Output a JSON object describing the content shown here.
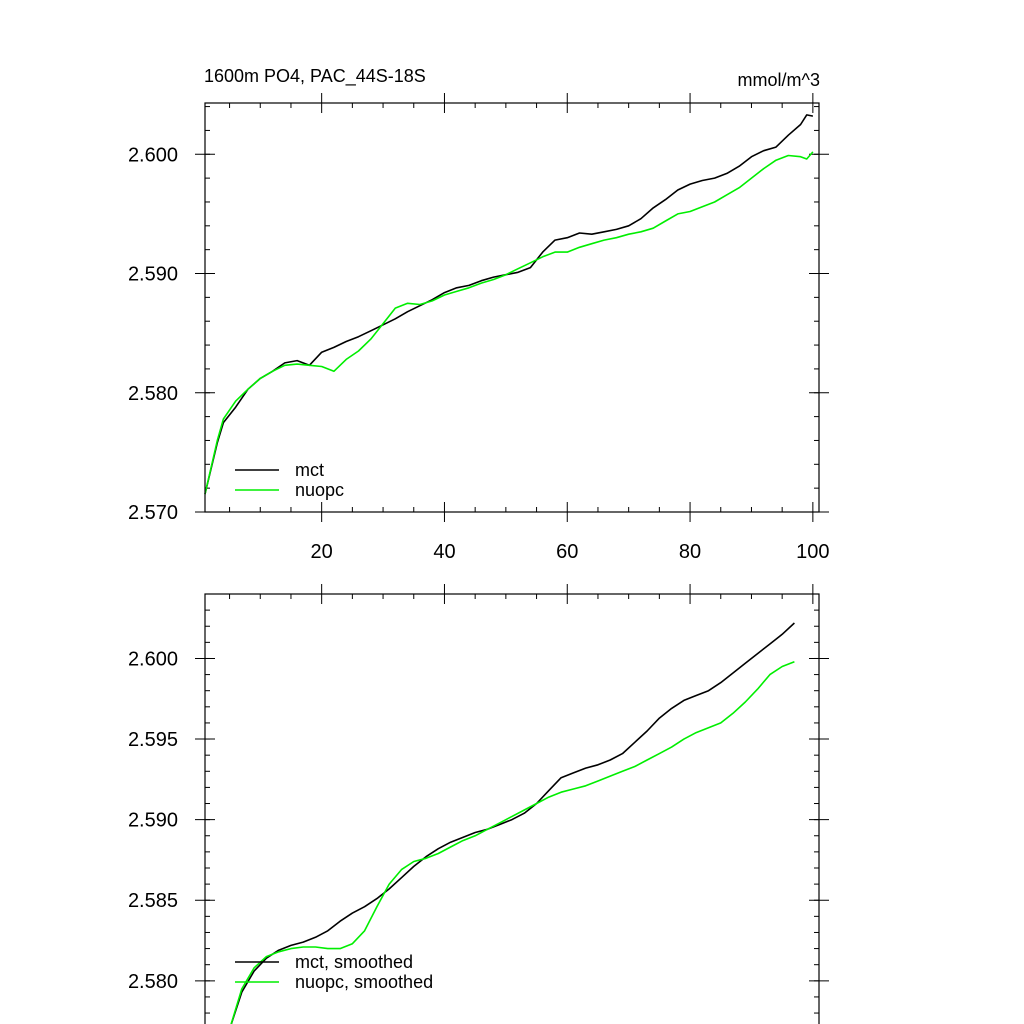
{
  "colors": {
    "mct": "#000000",
    "nuopc": "#00ee00"
  },
  "chart_data": [
    {
      "type": "line",
      "title": "1600m PO4, PAC_44S-18S",
      "units": "mmol/m^3",
      "xlim": [
        1,
        101
      ],
      "ylim": [
        2.57,
        2.6043
      ],
      "x_ticks": [
        20,
        40,
        60,
        80,
        100
      ],
      "y_ticks": [
        2.57,
        2.58,
        2.59,
        2.6
      ],
      "x_tick_labels": [
        "20",
        "40",
        "60",
        "80",
        "100"
      ],
      "y_tick_labels": [
        "2.570",
        "2.580",
        "2.590",
        "2.600"
      ],
      "legend_position": "bottom-left",
      "series": [
        {
          "name": "mct",
          "color": "#000000",
          "x": [
            1,
            3,
            4,
            6,
            8,
            10,
            12,
            14,
            16,
            18,
            20,
            22,
            24,
            26,
            28,
            30,
            32,
            34,
            36,
            38,
            40,
            42,
            44,
            46,
            48,
            50,
            52,
            54,
            56,
            58,
            60,
            62,
            64,
            66,
            68,
            70,
            72,
            74,
            76,
            78,
            80,
            82,
            84,
            86,
            88,
            90,
            92,
            94,
            96,
            98,
            99,
            100
          ],
          "y": [
            2.5715,
            2.5758,
            2.5775,
            2.5788,
            2.5803,
            2.5812,
            2.5818,
            2.5825,
            2.5827,
            2.5823,
            2.5834,
            2.5838,
            2.5843,
            2.5847,
            2.5852,
            2.5857,
            2.5862,
            2.5868,
            2.5873,
            2.5878,
            2.5884,
            2.5888,
            2.589,
            2.5894,
            2.5897,
            2.5899,
            2.5901,
            2.5905,
            2.5918,
            2.5928,
            2.593,
            2.5934,
            2.5933,
            2.5935,
            2.5937,
            2.594,
            2.5946,
            2.5955,
            2.5962,
            2.597,
            2.5975,
            2.5978,
            2.598,
            2.5984,
            2.599,
            2.5998,
            2.6003,
            2.6006,
            2.6016,
            2.6025,
            2.6033,
            2.6032
          ]
        },
        {
          "name": "nuopc",
          "color": "#00ee00",
          "x": [
            1,
            3,
            4,
            6,
            8,
            10,
            12,
            14,
            16,
            18,
            20,
            22,
            24,
            26,
            28,
            30,
            32,
            34,
            36,
            38,
            40,
            42,
            44,
            46,
            48,
            50,
            52,
            54,
            56,
            58,
            60,
            62,
            64,
            66,
            68,
            70,
            72,
            74,
            76,
            78,
            80,
            82,
            84,
            86,
            88,
            90,
            92,
            94,
            96,
            98,
            99,
            100
          ],
          "y": [
            2.5715,
            2.576,
            2.5778,
            2.5793,
            2.5803,
            2.5812,
            2.5818,
            2.5823,
            2.5824,
            2.5823,
            2.5822,
            2.5818,
            2.5828,
            2.5835,
            2.5845,
            2.5858,
            2.5871,
            2.5875,
            2.5874,
            2.5877,
            2.5882,
            2.5885,
            2.5888,
            2.5892,
            2.5895,
            2.5899,
            2.5904,
            2.5909,
            2.5914,
            2.5918,
            2.5918,
            2.5922,
            2.5925,
            2.5928,
            2.593,
            2.5933,
            2.5935,
            2.5938,
            2.5944,
            2.595,
            2.5952,
            2.5956,
            2.596,
            2.5966,
            2.5972,
            2.598,
            2.5988,
            2.5995,
            2.5999,
            2.5998,
            2.5996,
            2.6002
          ]
        }
      ]
    },
    {
      "type": "line",
      "xlim": [
        1,
        101
      ],
      "ylim": [
        2.5767,
        2.604
      ],
      "x_ticks": [
        20,
        40,
        60,
        80,
        100
      ],
      "y_ticks": [
        2.58,
        2.585,
        2.59,
        2.595,
        2.6
      ],
      "y_tick_labels": [
        "2.580",
        "2.585",
        "2.590",
        "2.595",
        "2.600"
      ],
      "legend_position": "bottom-left",
      "series": [
        {
          "name": "mct, smoothed",
          "color": "#000000",
          "x": [
            5,
            7,
            9,
            11,
            13,
            15,
            17,
            19,
            21,
            23,
            25,
            27,
            29,
            31,
            33,
            35,
            37,
            39,
            41,
            43,
            45,
            47,
            49,
            51,
            53,
            55,
            57,
            59,
            61,
            63,
            65,
            67,
            69,
            71,
            73,
            75,
            77,
            79,
            81,
            83,
            85,
            87,
            89,
            91,
            93,
            95,
            97
          ],
          "y": [
            2.577,
            2.5793,
            2.5806,
            2.5814,
            2.5819,
            2.5822,
            2.5824,
            2.5827,
            2.5831,
            2.5837,
            2.5842,
            2.5846,
            2.5851,
            2.5857,
            2.5864,
            2.5871,
            2.5877,
            2.5882,
            2.5886,
            2.5889,
            2.5892,
            2.5894,
            2.5897,
            2.59,
            2.5904,
            2.591,
            2.5918,
            2.5926,
            2.5929,
            2.5932,
            2.5934,
            2.5937,
            2.5941,
            2.5948,
            2.5955,
            2.5963,
            2.5969,
            2.5974,
            2.5977,
            2.598,
            2.5985,
            2.5991,
            2.5997,
            2.6003,
            2.6009,
            2.6015,
            2.6022
          ]
        },
        {
          "name": "nuopc, smoothed",
          "color": "#00ee00",
          "x": [
            5,
            7,
            9,
            11,
            13,
            15,
            17,
            19,
            21,
            23,
            25,
            27,
            29,
            31,
            33,
            35,
            37,
            39,
            41,
            43,
            45,
            47,
            49,
            51,
            53,
            55,
            57,
            59,
            61,
            63,
            65,
            67,
            69,
            71,
            73,
            75,
            77,
            79,
            81,
            83,
            85,
            87,
            89,
            91,
            93,
            95,
            97
          ],
          "y": [
            2.577,
            2.5795,
            2.5808,
            2.5815,
            2.5818,
            2.582,
            2.5821,
            2.5821,
            2.582,
            2.582,
            2.5823,
            2.5831,
            2.5846,
            2.586,
            2.5869,
            2.5874,
            2.5876,
            2.5879,
            2.5883,
            2.5887,
            2.589,
            2.5894,
            2.5898,
            2.5902,
            2.5906,
            2.591,
            2.5914,
            2.5917,
            2.5919,
            2.5921,
            2.5924,
            2.5927,
            2.593,
            2.5933,
            2.5937,
            2.5941,
            2.5945,
            2.595,
            2.5954,
            2.5957,
            2.596,
            2.5966,
            2.5973,
            2.5981,
            2.599,
            2.5995,
            2.5998
          ]
        }
      ]
    }
  ]
}
